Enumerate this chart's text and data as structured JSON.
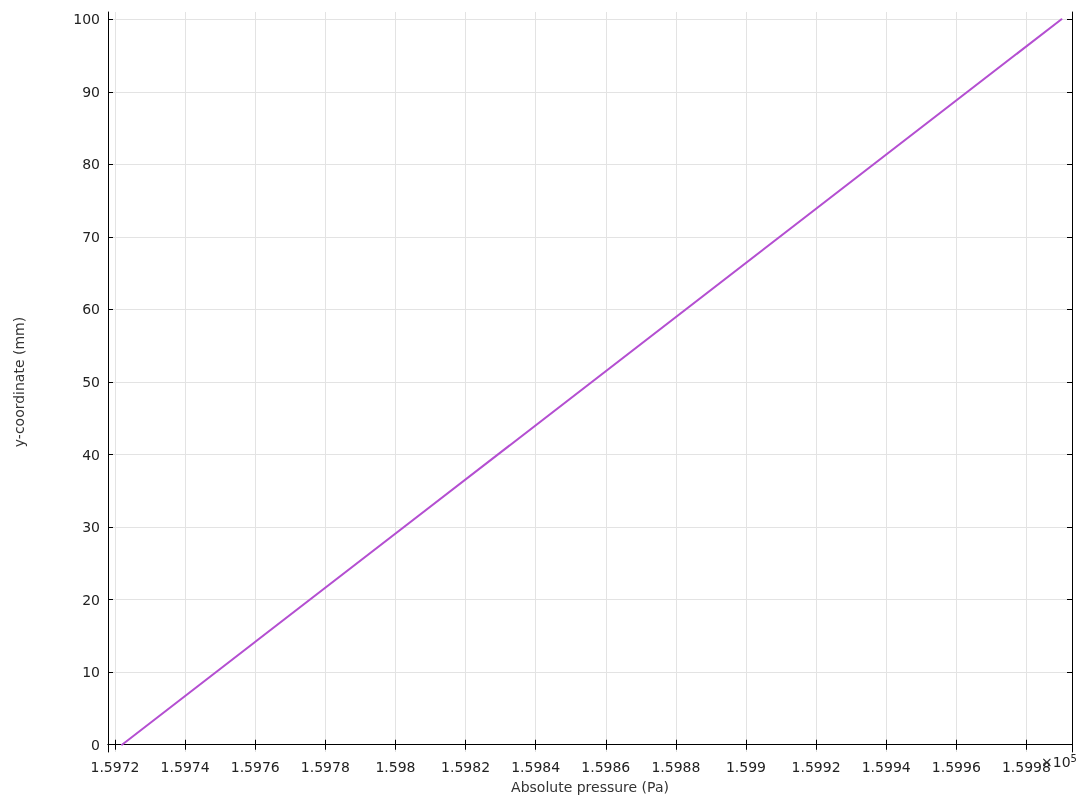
{
  "chart_data": {
    "type": "line",
    "xlabel": "Absolute pressure (Pa)",
    "ylabel": "y-coordinate (mm)",
    "x": [
      1.59722,
      1.5999
    ],
    "series": [
      {
        "color": "#b44fd1",
        "values": [
          0,
          100
        ]
      }
    ],
    "xlim": [
      1.59718,
      1.59993
    ],
    "xticks": [
      1.5972,
      1.5974,
      1.5976,
      1.5978,
      1.598,
      1.5982,
      1.5984,
      1.5986,
      1.5988,
      1.599,
      1.5992,
      1.5994,
      1.5996,
      1.5998
    ],
    "ylim": [
      -1,
      101
    ],
    "yticks": [
      0,
      10,
      20,
      30,
      40,
      50,
      60,
      70,
      80,
      90,
      100
    ],
    "annotations": [
      "×10$^{5}$"
    ],
    "grid": true,
    "marker": "none",
    "line_style": "solid"
  }
}
